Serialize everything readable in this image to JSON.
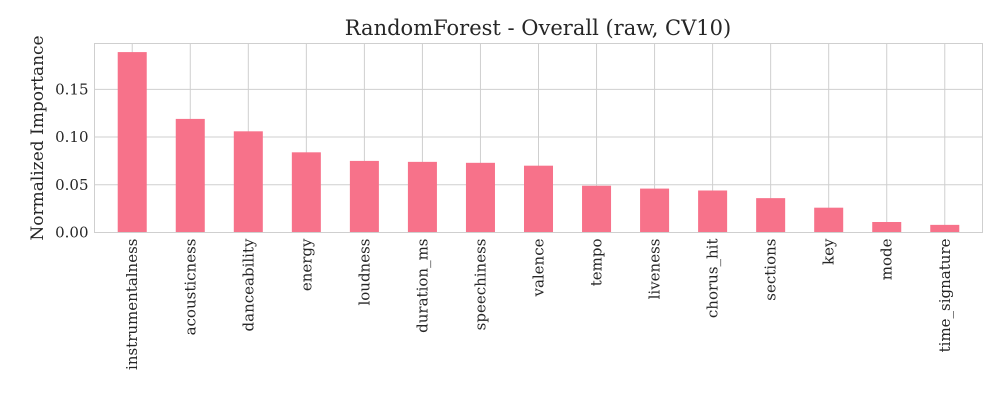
{
  "chart_data": {
    "type": "bar",
    "title": "RandomForest - Overall (raw, CV10)",
    "xlabel": "",
    "ylabel": "Normalized Importance",
    "categories": [
      "instrumentalness",
      "acousticness",
      "danceability",
      "energy",
      "loudness",
      "duration_ms",
      "speechiness",
      "valence",
      "tempo",
      "liveness",
      "chorus_hit",
      "sections",
      "key",
      "mode",
      "time_signature"
    ],
    "values": [
      0.189,
      0.119,
      0.106,
      0.084,
      0.075,
      0.074,
      0.073,
      0.07,
      0.049,
      0.046,
      0.044,
      0.036,
      0.026,
      0.011,
      0.008
    ],
    "yticks": [
      0.0,
      0.05,
      0.1,
      0.15
    ],
    "ytick_labels": [
      "0.00",
      "0.05",
      "0.10",
      "0.15"
    ],
    "ylim": [
      0,
      0.198
    ],
    "grid": true,
    "legend": "none",
    "bar_color": "#f7728a"
  }
}
